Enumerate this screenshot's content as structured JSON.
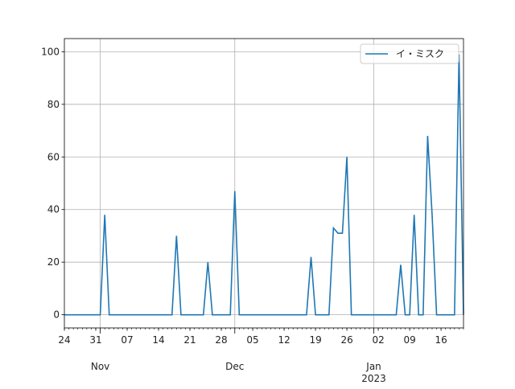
{
  "chart_data": {
    "type": "line",
    "x": [
      "2022-10-24",
      "2022-10-25",
      "2022-10-26",
      "2022-10-27",
      "2022-10-28",
      "2022-10-29",
      "2022-10-30",
      "2022-10-31",
      "2022-11-01",
      "2022-11-02",
      "2022-11-03",
      "2022-11-04",
      "2022-11-05",
      "2022-11-06",
      "2022-11-07",
      "2022-11-08",
      "2022-11-09",
      "2022-11-10",
      "2022-11-11",
      "2022-11-12",
      "2022-11-13",
      "2022-11-14",
      "2022-11-15",
      "2022-11-16",
      "2022-11-17",
      "2022-11-18",
      "2022-11-19",
      "2022-11-20",
      "2022-11-21",
      "2022-11-22",
      "2022-11-23",
      "2022-11-24",
      "2022-11-25",
      "2022-11-26",
      "2022-11-27",
      "2022-11-28",
      "2022-11-29",
      "2022-11-30",
      "2022-12-01",
      "2022-12-02",
      "2022-12-03",
      "2022-12-04",
      "2022-12-05",
      "2022-12-06",
      "2022-12-07",
      "2022-12-08",
      "2022-12-09",
      "2022-12-10",
      "2022-12-11",
      "2022-12-12",
      "2022-12-13",
      "2022-12-14",
      "2022-12-15",
      "2022-12-16",
      "2022-12-17",
      "2022-12-18",
      "2022-12-19",
      "2022-12-20",
      "2022-12-21",
      "2022-12-22",
      "2022-12-23",
      "2022-12-24",
      "2022-12-25",
      "2022-12-26",
      "2022-12-27",
      "2022-12-28",
      "2022-12-29",
      "2022-12-30",
      "2022-12-31",
      "2023-01-01",
      "2023-01-02",
      "2023-01-03",
      "2023-01-04",
      "2023-01-05",
      "2023-01-06",
      "2023-01-07",
      "2023-01-08",
      "2023-01-09",
      "2023-01-10",
      "2023-01-11",
      "2023-01-12",
      "2023-01-13",
      "2023-01-14",
      "2023-01-15",
      "2023-01-16",
      "2023-01-17",
      "2023-01-18",
      "2023-01-19",
      "2023-01-20",
      "2023-01-21"
    ],
    "series": [
      {
        "name": "イ・ミスク",
        "color": "#1f77b4",
        "values": [
          0,
          0,
          0,
          0,
          0,
          0,
          0,
          0,
          0,
          38,
          0,
          0,
          0,
          0,
          0,
          0,
          0,
          0,
          0,
          0,
          0,
          0,
          0,
          0,
          0,
          30,
          0,
          0,
          0,
          0,
          0,
          0,
          20,
          0,
          0,
          0,
          0,
          0,
          47,
          0,
          0,
          0,
          0,
          0,
          0,
          0,
          0,
          0,
          0,
          0,
          0,
          0,
          0,
          0,
          0,
          22,
          0,
          0,
          0,
          0,
          33,
          31,
          31,
          60,
          0,
          0,
          0,
          0,
          0,
          0,
          0,
          0,
          0,
          0,
          0,
          19,
          0,
          0,
          38,
          0,
          0,
          68,
          38,
          0,
          0,
          0,
          0,
          0,
          99,
          0
        ]
      }
    ],
    "xlim": [
      "2022-10-24",
      "2023-01-21"
    ],
    "xticks": [
      {
        "value": "2022-10-24",
        "label": "24"
      },
      {
        "value": "2022-10-31",
        "label": "31"
      },
      {
        "value": "2022-11-07",
        "label": "07"
      },
      {
        "value": "2022-11-14",
        "label": "14"
      },
      {
        "value": "2022-11-21",
        "label": "21"
      },
      {
        "value": "2022-11-28",
        "label": "28"
      },
      {
        "value": "2022-12-05",
        "label": "05"
      },
      {
        "value": "2022-12-12",
        "label": "12"
      },
      {
        "value": "2022-12-19",
        "label": "19"
      },
      {
        "value": "2022-12-26",
        "label": "26"
      },
      {
        "value": "2023-01-02",
        "label": "02"
      },
      {
        "value": "2023-01-09",
        "label": "09"
      },
      {
        "value": "2023-01-16",
        "label": "16"
      }
    ],
    "x_month_ticks": [
      {
        "value": "2022-11-01",
        "label": "Nov"
      },
      {
        "value": "2022-12-01",
        "label": "Dec"
      },
      {
        "value": "2023-01-01",
        "label": "Jan\n2023"
      }
    ],
    "ylim": [
      -5,
      105
    ],
    "yticks": [
      0,
      20,
      40,
      60,
      80,
      100
    ],
    "grid": true,
    "legend": "upper right"
  }
}
